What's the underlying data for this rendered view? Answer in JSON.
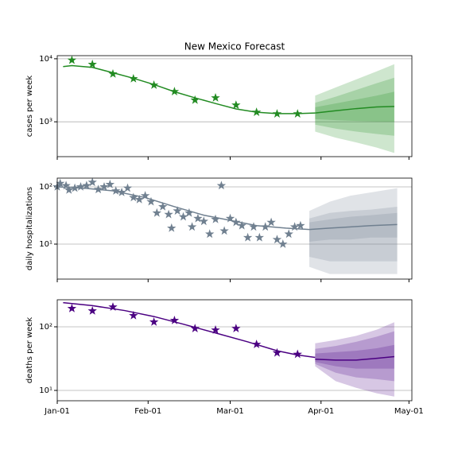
{
  "chart_data": [
    {
      "type": "forecast",
      "title": "New Mexico Forecast",
      "y_label": "cases per week",
      "color": "#228b22",
      "log_y": true,
      "grid": true,
      "xlim": [
        "Jan-01",
        "May-02"
      ],
      "ylim": [
        280,
        11200
      ],
      "yticks": [
        {
          "value": 1000,
          "label": "10³"
        },
        {
          "value": 10000,
          "label": "10⁴"
        }
      ],
      "observed": {
        "x": [
          "Jan-06",
          "Jan-13",
          "Jan-20",
          "Jan-27",
          "Feb-03",
          "Feb-10",
          "Feb-17",
          "Feb-24",
          "Mar-03",
          "Mar-10",
          "Mar-17",
          "Mar-24"
        ],
        "values": [
          9500,
          8150,
          5750,
          4830,
          3820,
          3020,
          2210,
          2400,
          1840,
          1420,
          1340,
          1340
        ]
      },
      "fit": {
        "x": [
          "Jan-03",
          "Jan-06",
          "Jan-13",
          "Jan-20",
          "Jan-27",
          "Feb-03",
          "Feb-10",
          "Feb-17",
          "Feb-24",
          "Mar-03",
          "Mar-10",
          "Mar-17",
          "Mar-24",
          "Mar-30"
        ],
        "values": [
          7500,
          7800,
          7300,
          6000,
          4900,
          3900,
          3000,
          2400,
          1950,
          1600,
          1420,
          1350,
          1350,
          1380
        ]
      },
      "forecast": {
        "x": [
          "Mar-30",
          "Apr-06",
          "Apr-13",
          "Apr-20",
          "Apr-26"
        ],
        "median": [
          1380,
          1500,
          1620,
          1720,
          1750
        ],
        "bands": [
          {
            "lower": [
              700,
              560,
              470,
              390,
              320
            ],
            "upper": [
              2600,
              3500,
              4700,
              6300,
              8200
            ]
          },
          {
            "lower": [
              900,
              780,
              700,
              640,
              600
            ],
            "upper": [
              2000,
              2500,
              3200,
              4100,
              5000
            ]
          },
          {
            "lower": [
              1100,
              1060,
              1030,
              1010,
              1000
            ],
            "upper": [
              1700,
              1950,
              2250,
              2600,
              3000
            ]
          }
        ]
      }
    },
    {
      "type": "forecast",
      "y_label": "daily hospitalizations",
      "color": "#708090",
      "log_y": true,
      "grid": true,
      "xlim": [
        "Jan-01",
        "May-02"
      ],
      "ylim": [
        2.45,
        142
      ],
      "yticks": [
        {
          "value": 10,
          "label": "10¹"
        },
        {
          "value": 100,
          "label": "10²"
        }
      ],
      "observed": {
        "x": [
          "Jan-01",
          "Jan-02",
          "Jan-04",
          "Jan-05",
          "Jan-07",
          "Jan-09",
          "Jan-11",
          "Jan-13",
          "Jan-15",
          "Jan-17",
          "Jan-19",
          "Jan-21",
          "Jan-23",
          "Jan-25",
          "Jan-27",
          "Jan-29",
          "Jan-31",
          "Feb-02",
          "Feb-04",
          "Feb-06",
          "Feb-08",
          "Feb-09",
          "Feb-11",
          "Feb-13",
          "Feb-15",
          "Feb-16",
          "Feb-18",
          "Feb-20",
          "Feb-22",
          "Feb-24",
          "Feb-26",
          "Feb-27",
          "Mar-01",
          "Mar-03",
          "Mar-05",
          "Mar-07",
          "Mar-09",
          "Mar-11",
          "Mar-13",
          "Mar-15",
          "Mar-17",
          "Mar-19",
          "Mar-21",
          "Mar-23",
          "Mar-25"
        ],
        "values": [
          100,
          115,
          105,
          88,
          95,
          100,
          105,
          120,
          90,
          100,
          110,
          85,
          80,
          95,
          65,
          60,
          70,
          55,
          35,
          45,
          33,
          19,
          38,
          30,
          35,
          20,
          28,
          25,
          15,
          27,
          105,
          17,
          28,
          24,
          21,
          13,
          20,
          13,
          20,
          24,
          12,
          10,
          15,
          20,
          21
        ]
      },
      "fit": {
        "x": [
          "Jan-01",
          "Jan-10",
          "Jan-20",
          "Jan-31",
          "Feb-10",
          "Feb-20",
          "Mar-01",
          "Mar-10",
          "Mar-20",
          "Mar-28"
        ],
        "values": [
          100,
          95,
          85,
          65,
          45,
          32,
          26,
          21,
          19,
          18
        ]
      },
      "forecast": {
        "x": [
          "Mar-28",
          "Apr-04",
          "Apr-11",
          "Apr-18",
          "Apr-27"
        ],
        "median": [
          18,
          19,
          20,
          21,
          22
        ],
        "bands": [
          {
            "lower": [
              4,
              3,
              3,
              3,
              3
            ],
            "upper": [
              38,
              55,
              70,
              80,
              95
            ]
          },
          {
            "lower": [
              6,
              5,
              5,
              5,
              5
            ],
            "upper": [
              28,
              35,
              38,
              40,
              45
            ]
          },
          {
            "lower": [
              11,
              12,
              12,
              13,
              13
            ],
            "upper": [
              24,
              27,
              30,
              32,
              35
            ]
          }
        ]
      }
    },
    {
      "type": "forecast",
      "y_label": "deaths per week",
      "color": "#4b0082",
      "log_y": true,
      "grid": true,
      "xlim": [
        "Jan-01",
        "May-02"
      ],
      "ylim": [
        6.88,
        266
      ],
      "yticks": [
        {
          "value": 10,
          "label": "10¹"
        },
        {
          "value": 100,
          "label": "10²"
        }
      ],
      "xticks": [
        "Jan-01",
        "Feb-01",
        "Mar-01",
        "Apr-01",
        "May-01"
      ],
      "observed": {
        "x": [
          "Jan-06",
          "Jan-13",
          "Jan-20",
          "Jan-27",
          "Feb-03",
          "Feb-10",
          "Feb-17",
          "Feb-24",
          "Mar-03",
          "Mar-10",
          "Mar-17",
          "Mar-24"
        ],
        "values": [
          194,
          178,
          205,
          150,
          119,
          126,
          94,
          89,
          94,
          53,
          39,
          37
        ]
      },
      "fit": {
        "x": [
          "Jan-03",
          "Jan-13",
          "Jan-24",
          "Feb-03",
          "Feb-13",
          "Feb-24",
          "Mar-07",
          "Mar-17",
          "Mar-24",
          "Mar-30"
        ],
        "values": [
          240,
          215,
          180,
          145,
          110,
          80,
          58,
          42,
          36,
          33
        ]
      },
      "forecast": {
        "x": [
          "Mar-30",
          "Apr-06",
          "Apr-13",
          "Apr-20",
          "Apr-26"
        ],
        "median": [
          31,
          30,
          30,
          32,
          34
        ],
        "bands": [
          {
            "lower": [
              24,
              14,
              11,
              9,
              8
            ],
            "upper": [
              55,
              62,
              72,
              90,
              118
            ]
          },
          {
            "lower": [
              26,
              19,
              16,
              15,
              14
            ],
            "upper": [
              45,
              50,
              58,
              70,
              85
            ]
          },
          {
            "lower": [
              28,
              24,
              22,
              22,
              22
            ],
            "upper": [
              38,
              40,
              42,
              46,
              52
            ]
          }
        ]
      }
    }
  ]
}
